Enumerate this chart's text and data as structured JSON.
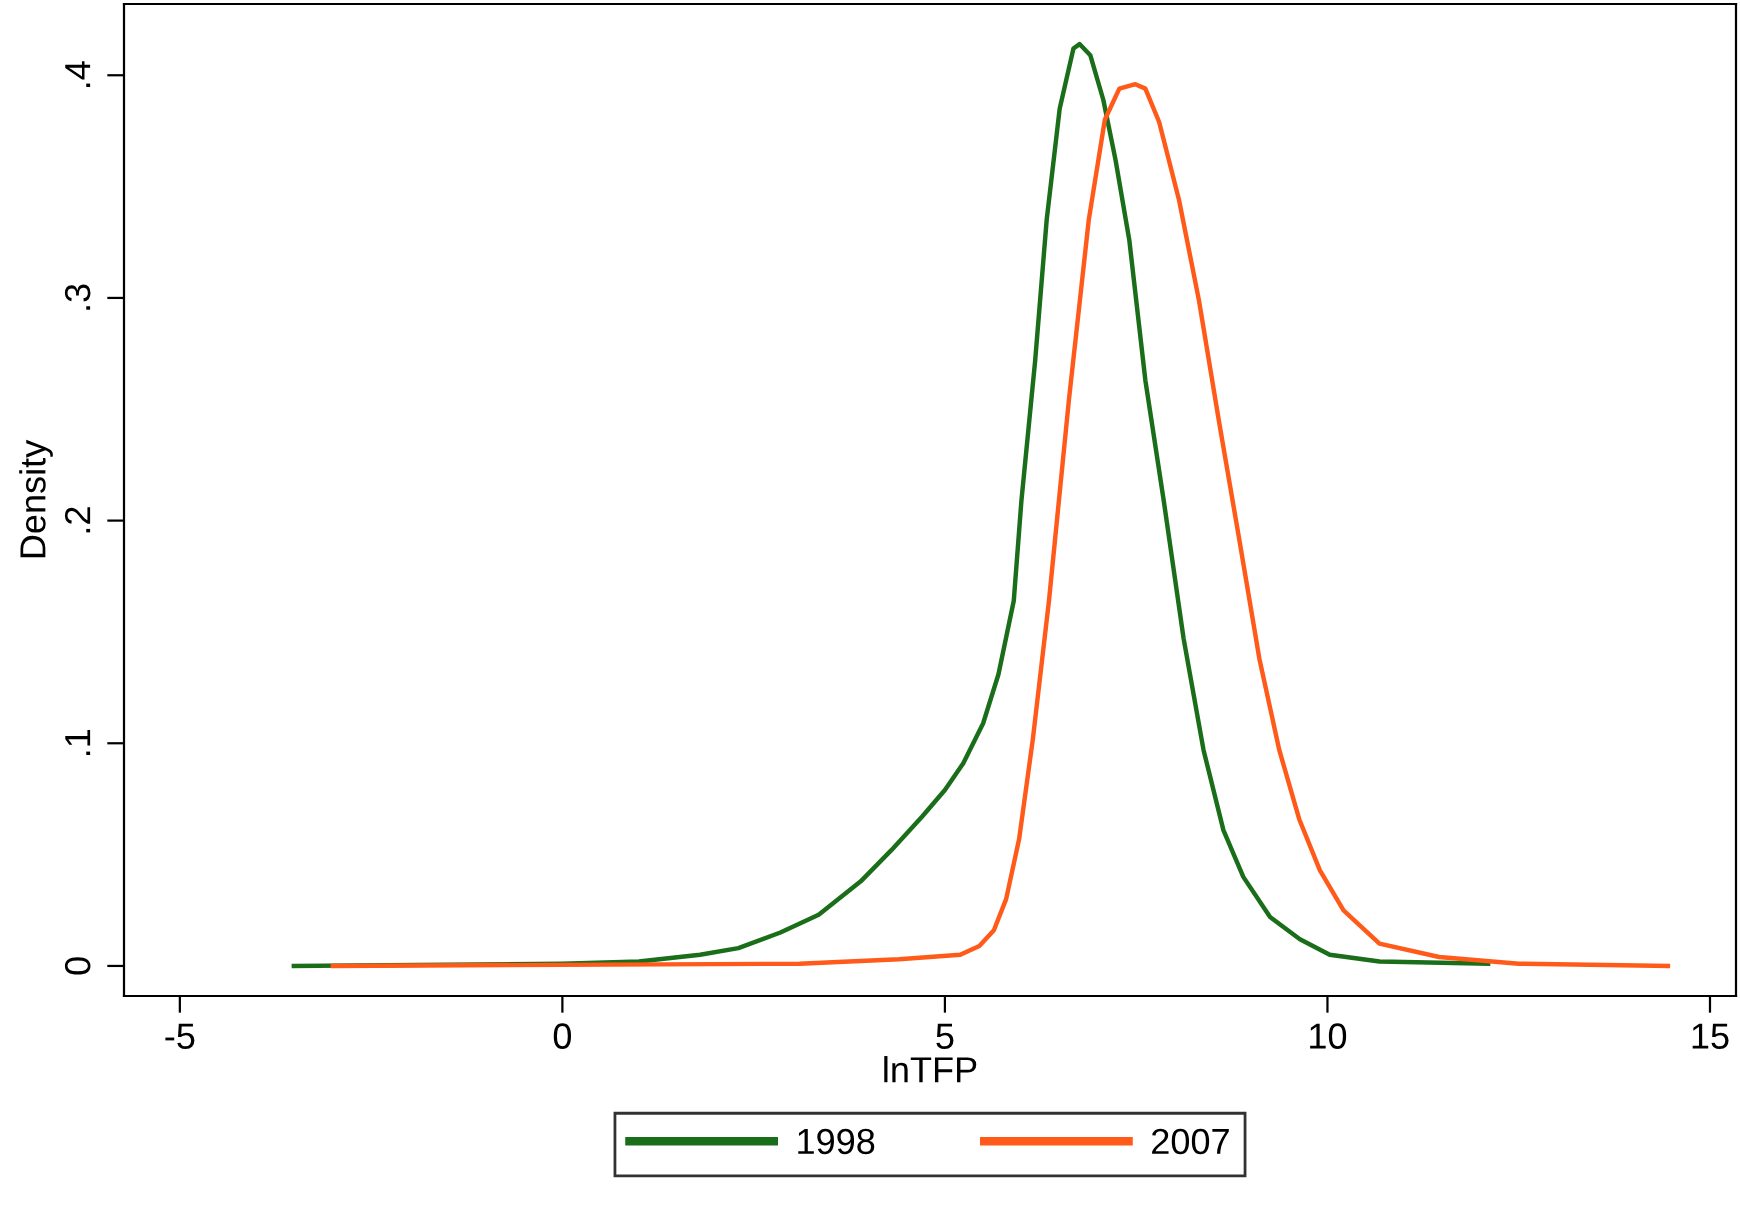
{
  "chart_data": {
    "type": "line",
    "xlabel": "lnTFP",
    "ylabel": "Density",
    "xlim": [
      -5.73,
      15.34
    ],
    "ylim": [
      -0.0135,
      0.432
    ],
    "xticks": [
      -5,
      0,
      5,
      10,
      15
    ],
    "yticks": [
      {
        "value": 0,
        "label": "0"
      },
      {
        "value": 0.1,
        "label": ".1"
      },
      {
        "value": 0.2,
        "label": ".2"
      },
      {
        "value": 0.3,
        "label": ".3"
      },
      {
        "value": 0.4,
        "label": ".4"
      }
    ],
    "grid": false,
    "legend": "bottom",
    "marker": "none",
    "line_style": "solid",
    "series": [
      {
        "name": "1998",
        "color": "#1a6e1a",
        "x": [
          -3.51,
          0,
          1.0,
          1.8,
          2.3,
          2.85,
          3.35,
          3.9,
          4.3,
          4.7,
          5.0,
          5.24,
          5.5,
          5.7,
          5.9,
          6.0,
          6.18,
          6.33,
          6.5,
          6.68,
          6.76,
          6.9,
          7.07,
          7.23,
          7.41,
          7.62,
          7.86,
          8.12,
          8.38,
          8.64,
          8.9,
          9.25,
          9.64,
          10.03,
          10.68,
          12.1
        ],
        "values": [
          0,
          0.001,
          0.002,
          0.005,
          0.008,
          0.015,
          0.023,
          0.038,
          0.052,
          0.067,
          0.079,
          0.091,
          0.109,
          0.131,
          0.164,
          0.209,
          0.272,
          0.335,
          0.385,
          0.412,
          0.414,
          0.409,
          0.389,
          0.362,
          0.326,
          0.263,
          0.209,
          0.147,
          0.097,
          0.061,
          0.04,
          0.022,
          0.012,
          0.005,
          0.002,
          0.001
        ]
      },
      {
        "name": "2007",
        "color": "#ff5a1a",
        "x": [
          -3.0,
          3.1,
          4.4,
          5.2,
          5.45,
          5.64,
          5.8,
          5.97,
          6.15,
          6.36,
          6.62,
          6.88,
          7.09,
          7.28,
          7.49,
          7.62,
          7.8,
          8.06,
          8.32,
          8.58,
          8.85,
          9.11,
          9.37,
          9.63,
          9.9,
          10.21,
          10.68,
          11.46,
          12.5,
          14.45
        ],
        "values": [
          0,
          0.001,
          0.003,
          0.005,
          0.009,
          0.016,
          0.03,
          0.057,
          0.102,
          0.164,
          0.254,
          0.335,
          0.38,
          0.394,
          0.396,
          0.394,
          0.379,
          0.344,
          0.299,
          0.245,
          0.191,
          0.138,
          0.097,
          0.066,
          0.043,
          0.025,
          0.01,
          0.004,
          0.001,
          0
        ]
      }
    ]
  }
}
